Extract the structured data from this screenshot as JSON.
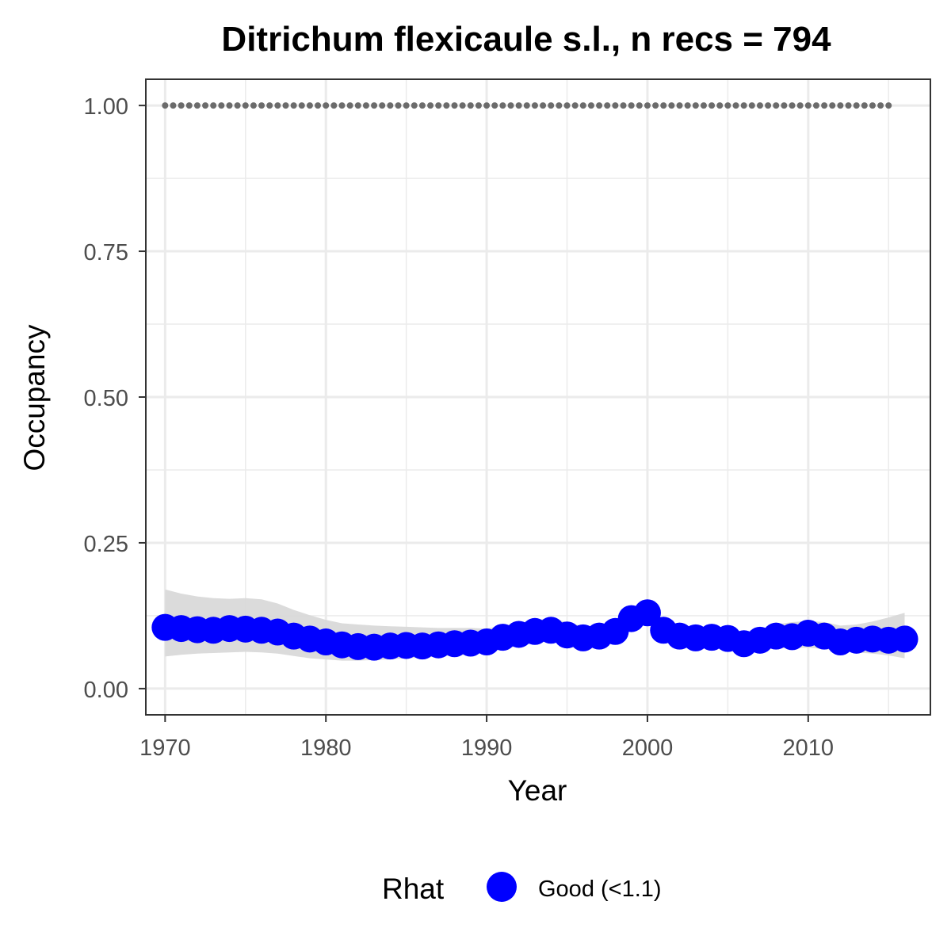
{
  "chart_data": {
    "type": "line",
    "title": "Ditrichum flexicaule s.l., n recs = 794",
    "xlabel": "Year",
    "ylabel": "Occupancy",
    "xlim": [
      1968.8,
      2017.6
    ],
    "ylim": [
      -0.045,
      1.045
    ],
    "x_ticks": [
      1970,
      1980,
      1990,
      2000,
      2010
    ],
    "x_tick_labels": [
      "1970",
      "1980",
      "1990",
      "2000",
      "2010"
    ],
    "y_ticks": [
      0,
      0.25,
      0.5,
      0.75,
      1.0
    ],
    "y_tick_labels": [
      "0.00",
      "0.25",
      "0.50",
      "0.75",
      "1.00"
    ],
    "grid": true,
    "legend": {
      "title": "Rhat",
      "position": "bottom",
      "entries": [
        {
          "label": "Good (<1.1)",
          "color": "#0000ff"
        }
      ]
    },
    "colors": {
      "points": "#0000ff",
      "ribbon": "#d9d9d9",
      "reference_points": "#6b6b6b",
      "grid": "#ebebeb",
      "panel_border": "#333333"
    },
    "series": [
      {
        "role": "occupancy_mean",
        "x": [
          1970,
          1971,
          1972,
          1973,
          1974,
          1975,
          1976,
          1977,
          1978,
          1979,
          1980,
          1981,
          1982,
          1983,
          1984,
          1985,
          1986,
          1987,
          1988,
          1989,
          1990,
          1991,
          1992,
          1993,
          1994,
          1995,
          1996,
          1997,
          1998,
          1999,
          2000,
          2001,
          2002,
          2003,
          2004,
          2005,
          2006,
          2007,
          2008,
          2009,
          2010,
          2011,
          2012,
          2013,
          2014,
          2015,
          2016
        ],
        "y": [
          0.105,
          0.103,
          0.101,
          0.1,
          0.103,
          0.102,
          0.1,
          0.097,
          0.09,
          0.085,
          0.08,
          0.075,
          0.072,
          0.071,
          0.073,
          0.074,
          0.073,
          0.075,
          0.077,
          0.078,
          0.08,
          0.088,
          0.093,
          0.098,
          0.1,
          0.092,
          0.087,
          0.09,
          0.098,
          0.12,
          0.13,
          0.1,
          0.09,
          0.087,
          0.088,
          0.086,
          0.077,
          0.083,
          0.09,
          0.089,
          0.095,
          0.09,
          0.08,
          0.083,
          0.085,
          0.083,
          0.085
        ]
      },
      {
        "role": "credible_interval",
        "x": [
          1970,
          1971,
          1972,
          1973,
          1974,
          1975,
          1976,
          1977,
          1978,
          1979,
          1980,
          1981,
          1982,
          1983,
          1984,
          1985,
          1986,
          1987,
          1988,
          1989,
          1990,
          1991,
          1992,
          1993,
          1994,
          1995,
          1996,
          1997,
          1998,
          1999,
          2000,
          2001,
          2002,
          2003,
          2004,
          2005,
          2006,
          2007,
          2008,
          2009,
          2010,
          2011,
          2012,
          2013,
          2014,
          2015,
          2016
        ],
        "lower": [
          0.055,
          0.058,
          0.06,
          0.061,
          0.062,
          0.063,
          0.062,
          0.06,
          0.056,
          0.052,
          0.05,
          0.048,
          0.048,
          0.049,
          0.05,
          0.052,
          0.053,
          0.055,
          0.057,
          0.058,
          0.062,
          0.068,
          0.073,
          0.078,
          0.081,
          0.076,
          0.072,
          0.074,
          0.082,
          0.1,
          0.115,
          0.086,
          0.075,
          0.072,
          0.071,
          0.069,
          0.064,
          0.067,
          0.069,
          0.07,
          0.07,
          0.068,
          0.064,
          0.062,
          0.06,
          0.057,
          0.052
        ],
        "upper": [
          0.17,
          0.163,
          0.158,
          0.155,
          0.154,
          0.155,
          0.153,
          0.146,
          0.135,
          0.126,
          0.118,
          0.112,
          0.11,
          0.108,
          0.107,
          0.106,
          0.105,
          0.104,
          0.104,
          0.104,
          0.103,
          0.108,
          0.112,
          0.117,
          0.121,
          0.114,
          0.107,
          0.108,
          0.115,
          0.135,
          0.145,
          0.118,
          0.108,
          0.104,
          0.103,
          0.103,
          0.096,
          0.101,
          0.11,
          0.114,
          0.116,
          0.114,
          0.108,
          0.11,
          0.115,
          0.122,
          0.13
        ]
      },
      {
        "role": "reference",
        "x": [
          1970,
          1971,
          1972,
          1973,
          1974,
          1975,
          1976,
          1977,
          1978,
          1979,
          1980,
          1981,
          1982,
          1983,
          1984,
          1985,
          1986,
          1987,
          1988,
          1989,
          1990,
          1991,
          1992,
          1993,
          1994,
          1995,
          1996,
          1997,
          1998,
          1999,
          2000,
          2001,
          2002,
          2003,
          2004,
          2005,
          2006,
          2007,
          2008,
          2009,
          2010,
          2011,
          2012,
          2013,
          2014,
          2015
        ],
        "y": [
          1,
          1,
          1,
          1,
          1,
          1,
          1,
          1,
          1,
          1,
          1,
          1,
          1,
          1,
          1,
          1,
          1,
          1,
          1,
          1,
          1,
          1,
          1,
          1,
          1,
          1,
          1,
          1,
          1,
          1,
          1,
          1,
          1,
          1,
          1,
          1,
          1,
          1,
          1,
          1,
          1,
          1,
          1,
          1,
          1,
          1
        ]
      }
    ]
  }
}
